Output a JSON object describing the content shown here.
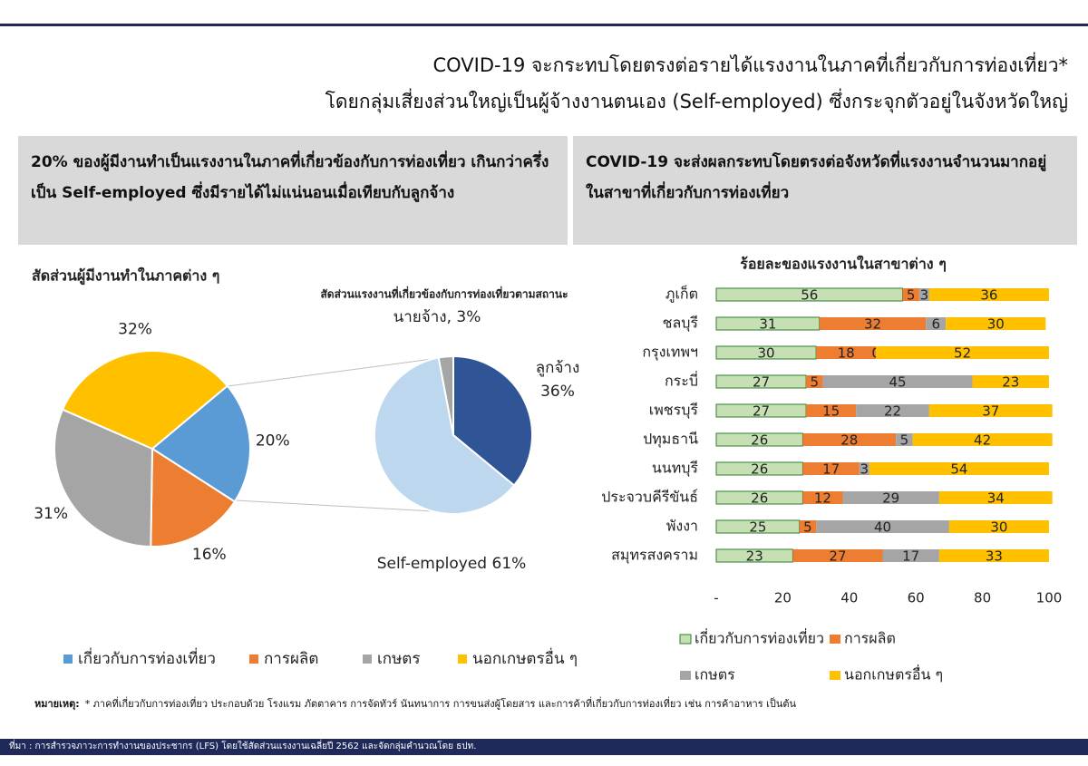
{
  "header": {
    "title_line1": "COVID-19 จะกระทบโดยตรงต่อรายได้แรงงานในภาคที่เกี่ยวกับการท่องเที่ยว*",
    "title_line2": "โดยกลุ่มเสี่ยงส่วนใหญ่เป็นผู้จ้างงานตนเอง (Self-employed) ซึ่งกระจุกตัวอยู่ในจังหวัดใหญ่"
  },
  "panels": [
    {
      "text": "20% ของผู้มีงานทำเป็นแรงงานในภาคที่เกี่ยวข้องกับการท่องเที่ยว เกินกว่าครึ่งเป็น Self-employed ซึ่งมีรายได้ไม่แน่นอนเมื่อเทียบกับลูกจ้าง"
    },
    {
      "text": "COVID-19 จะส่งผลกระทบโดยตรงต่อจังหวัดที่แรงงานจำนวนมากอยู่ในสาขาที่เกี่ยวกับการท่องเที่ยว"
    }
  ],
  "chart_data": [
    {
      "type": "pie",
      "title": "สัดส่วนผู้มีงานทำในภาคต่าง ๆ",
      "categories": [
        "เกี่ยวกับการท่องเที่ยว",
        "การผลิต",
        "เกษตร",
        "นอกเกษตรอื่น ๆ"
      ],
      "values": [
        20,
        16,
        31,
        32
      ],
      "value_labels": [
        "20%",
        "16%",
        "31%",
        "32%"
      ],
      "colors": [
        "#5b9bd5",
        "#ed7d31",
        "#a5a5a5",
        "#ffc000"
      ],
      "legend": "bottom"
    },
    {
      "type": "pie",
      "title": "สัดส่วนแรงงานที่เกี่ยวข้องกับการท่องเที่ยวตามสถานะ",
      "values": [
        36,
        61,
        3
      ],
      "value_labels": [
        "ลูกจ้าง\n36%",
        "Self-employed 61%",
        "นายจ้าง, 3%"
      ],
      "colors": [
        "#2f5597",
        "#bdd7ee",
        "#a5a5a5"
      ]
    },
    {
      "type": "stacked_barh",
      "title": "ร้อยละของแรงงานในสาขาต่าง ๆ",
      "categories": [
        "ภูเก็ต",
        "ชลบุรี",
        "กรุงเทพฯ",
        "กระบี่",
        "เพชรบุรี",
        "ปทุมธานี",
        "นนทบุรี",
        "ประจวบคีรีขันธ์",
        "พังงา",
        "สมุทรสงคราม"
      ],
      "series": [
        {
          "name": "เกี่ยวกับการท่องเที่ยว",
          "color": "#c6e0b4",
          "values": [
            56,
            31,
            30,
            27,
            27,
            26,
            26,
            26,
            25,
            23
          ]
        },
        {
          "name": "การผลิต",
          "color": "#ed7d31",
          "values": [
            5,
            32,
            18,
            5,
            15,
            28,
            17,
            12,
            5,
            27
          ]
        },
        {
          "name": "เกษตร",
          "color": "#a5a5a5",
          "values": [
            3,
            6,
            0,
            45,
            22,
            5,
            3,
            29,
            40,
            17
          ]
        },
        {
          "name": "นอกเกษตรอื่น ๆ",
          "color": "#ffc000",
          "values": [
            36,
            30,
            52,
            23,
            37,
            42,
            54,
            34,
            30,
            33
          ]
        }
      ],
      "xlim": [
        0,
        100
      ],
      "xticks": [
        {
          "value": 0,
          "label": "-"
        },
        20,
        40,
        60,
        80,
        100
      ],
      "legend": "bottom"
    }
  ],
  "note": {
    "label": "หมายเหตุ:",
    "text": "* ภาคที่เกี่ยวกับการท่องเที่ยว ประกอบด้วย โรงแรม ภัตตาคาร การจัดทัวร์ นันทนาการ การขนส่งผู้โดยสาร และการค้าที่เกี่ยวกับการท่องเที่ยว เช่น การค้าอาหาร เป็นต้น"
  },
  "source": "ที่มา : การสำรวจภาวะการทำงานของประชากร (LFS) โดยใช้สัดส่วนแรงงานเฉลี่ยปี 2562 และจัดกลุ่มคำนวณโดย ธปท."
}
